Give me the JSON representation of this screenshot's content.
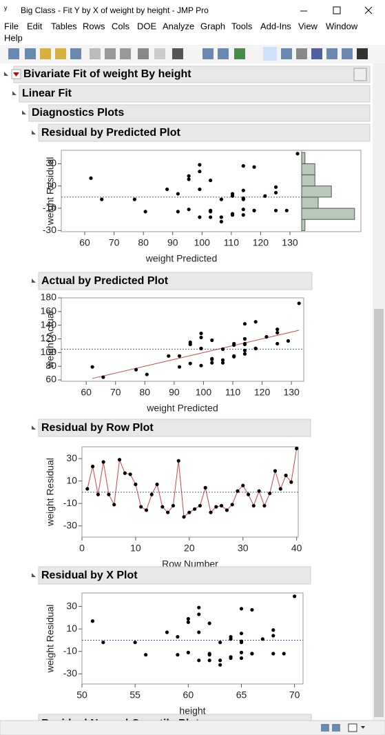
{
  "window": {
    "title": "Big Class - Fit Y by X of weight by height - JMP Pro"
  },
  "menu": [
    "File",
    "Edit",
    "Tables",
    "Rows",
    "Cols",
    "DOE",
    "Analyze",
    "Graph",
    "Tools",
    "Add-Ins",
    "View",
    "Window",
    "Help"
  ],
  "outline": {
    "report": "Bivariate Fit of weight By height",
    "fit": "Linear Fit",
    "diagnostics": "Diagnostics Plots",
    "next": "Residual Normal Quantile Plot"
  },
  "plots": [
    {
      "title": "Residual by Predicted Plot",
      "xlabel": "weight Predicted",
      "ylabel": "weight Residual",
      "x": [
        91.8,
        99.2,
        77,
        117.8,
        65.8,
        95.5,
        99.2,
        62.1,
        95.5,
        99.2,
        80.7,
        114.1,
        106.6,
        88.1,
        91.8,
        99.2,
        102.9,
        114.1,
        106.6,
        102.9,
        110.4,
        117.8,
        125.2,
        106.6,
        102.9,
        117.8,
        110.4,
        114.1,
        121.5,
        114.1,
        114.1,
        125.2,
        110.4,
        128.9,
        114.1,
        95.5,
        110.4,
        102.9,
        125.2,
        132.6
      ],
      "y": [
        3,
        23,
        -2,
        27,
        -2,
        -11,
        29,
        17,
        16,
        7,
        -13,
        -16,
        -2,
        7,
        -13,
        -18,
        -12,
        28,
        -22,
        -18,
        -15,
        -12,
        4,
        -18,
        -13,
        -12,
        -16,
        -11,
        1,
        6,
        -2,
        -12,
        1,
        -12,
        -1,
        19,
        3,
        15,
        9,
        39
      ],
      "xlim": [
        52,
        134
      ],
      "ylim": [
        -31,
        42
      ],
      "xticks": [
        60,
        70,
        80,
        90,
        100,
        110,
        120,
        130
      ],
      "yticks": [
        -30,
        -10,
        10,
        30
      ],
      "reference_line": 0,
      "histogram": {
        "bins": [
          -30,
          -20,
          -10,
          0,
          10,
          20,
          30,
          40
        ],
        "counts": [
          1,
          16,
          5,
          9,
          4,
          4,
          1
        ],
        "color": "#b8c8b8"
      }
    },
    {
      "title": "Actual by Predicted Plot",
      "xlabel": "weight Predicted",
      "ylabel": "weight Actual",
      "x": [
        91.8,
        99.2,
        77,
        117.8,
        65.8,
        95.5,
        99.2,
        62.1,
        95.5,
        99.2,
        80.7,
        114.1,
        106.6,
        88.1,
        91.8,
        99.2,
        102.9,
        114.1,
        106.6,
        102.9,
        110.4,
        117.8,
        125.2,
        106.6,
        102.9,
        117.8,
        110.4,
        114.1,
        121.5,
        114.1,
        114.1,
        125.2,
        110.4,
        128.9,
        114.1,
        95.5,
        110.4,
        102.9,
        125.2,
        132.6
      ],
      "y": [
        95,
        122,
        75,
        145,
        64,
        84,
        128,
        79,
        112,
        106,
        68,
        98,
        105,
        95,
        79,
        81,
        91,
        142,
        85,
        85,
        95,
        106,
        129,
        89,
        90,
        106,
        94,
        103,
        123,
        120,
        112,
        113,
        111,
        117,
        113,
        115,
        113,
        118,
        134,
        172
      ],
      "xlim": [
        51.5,
        134.2
      ],
      "ylim": [
        58,
        180
      ],
      "xticks": [
        60,
        70,
        80,
        90,
        100,
        110,
        120,
        130
      ],
      "yticks": [
        60,
        80,
        100,
        120,
        140,
        160,
        180
      ],
      "reference_line": 105,
      "fit_line": {
        "x": [
          62.1,
          132.6
        ],
        "y": [
          62.1,
          132.6
        ],
        "color": "#d04040"
      }
    },
    {
      "title": "Residual by Row Plot",
      "xlabel": "Row Number",
      "ylabel": "weight Residual",
      "x": [
        1,
        2,
        3,
        4,
        5,
        6,
        7,
        8,
        9,
        10,
        11,
        12,
        13,
        14,
        15,
        16,
        17,
        18,
        19,
        20,
        21,
        22,
        23,
        24,
        25,
        26,
        27,
        28,
        29,
        30,
        31,
        32,
        33,
        34,
        35,
        36,
        37,
        38,
        39,
        40
      ],
      "y": [
        3,
        23,
        -2,
        27,
        -2,
        -11,
        29,
        17,
        16,
        7,
        -13,
        -16,
        -2,
        7,
        -13,
        -18,
        -12,
        28,
        -22,
        -18,
        -15,
        -12,
        4,
        -18,
        -13,
        -12,
        -16,
        -11,
        1,
        6,
        -2,
        -12,
        1,
        -12,
        -1,
        19,
        3,
        15,
        9,
        39
      ],
      "xlim": [
        0,
        40.3
      ],
      "ylim": [
        -40,
        40.5
      ],
      "xticks": [
        0,
        10,
        20,
        30,
        40
      ],
      "yticks": [
        -30,
        -10,
        10,
        30
      ],
      "reference_line": 0,
      "connect_color": "#d04040"
    },
    {
      "title": "Residual by X Plot",
      "xlabel": "height",
      "ylabel": "weight Residual",
      "x": [
        59,
        61,
        55,
        66,
        52,
        60,
        61,
        51,
        60,
        61,
        56,
        65,
        63,
        58,
        59,
        61,
        62,
        65,
        63,
        62,
        64,
        66,
        68,
        63,
        62,
        66,
        64,
        65,
        67,
        65,
        65,
        68,
        64,
        69,
        65,
        60,
        64,
        62,
        68,
        70
      ],
      "y": [
        3,
        23,
        -2,
        27,
        -2,
        -11,
        29,
        17,
        16,
        7,
        -13,
        -16,
        -2,
        7,
        -13,
        -18,
        -12,
        28,
        -22,
        -18,
        -15,
        -12,
        4,
        -18,
        -13,
        -12,
        -16,
        -11,
        1,
        6,
        -2,
        -12,
        1,
        -12,
        -1,
        19,
        3,
        15,
        9,
        39
      ],
      "xlim": [
        50,
        70.8
      ],
      "ylim": [
        -39,
        42
      ],
      "xticks": [
        50,
        55,
        60,
        65,
        70
      ],
      "yticks": [
        -30,
        -10,
        10,
        30
      ],
      "reference_line": 0
    }
  ]
}
